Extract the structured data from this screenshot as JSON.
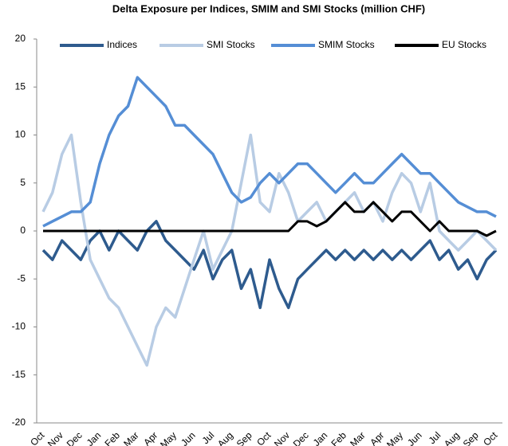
{
  "chart_data": {
    "type": "line",
    "title": "Delta Exposure per Indices, SMIM and SMI Stocks (million CHF)",
    "categories": [
      "Oct",
      null,
      "Nov",
      null,
      "Dec",
      null,
      "Jan",
      null,
      "Feb",
      null,
      "Mar",
      null,
      "Apr",
      null,
      "May",
      null,
      "Jun",
      null,
      "Jul",
      null,
      "Aug",
      null,
      "Sep",
      null,
      "Oct",
      null,
      "Nov",
      null,
      "Dec",
      null,
      "Jan",
      null,
      "Feb",
      null,
      "Mar",
      null,
      "Apr",
      null,
      "May",
      null,
      "Jun",
      null,
      "Jul",
      null,
      "Aug",
      null,
      "Sep",
      null,
      "Oct"
    ],
    "series": [
      {
        "name": "Indices",
        "color": "#2e5b8e",
        "values": [
          -2,
          -3,
          -1,
          -2,
          -3,
          -1,
          0,
          -2,
          0,
          -1,
          -2,
          0,
          1,
          -1,
          -2,
          -3,
          -4,
          -2,
          -5,
          -3,
          -2,
          -6,
          -4,
          -8,
          -3,
          -6,
          -8,
          -5,
          -4,
          -3,
          -2,
          -3,
          -2,
          -3,
          -2,
          -3,
          -2,
          -3,
          -2,
          -3,
          -2,
          -1,
          -3,
          -2,
          -4,
          -3,
          -5,
          -3,
          -2
        ]
      },
      {
        "name": "SMI Stocks",
        "color": "#b8cce4",
        "values": [
          2,
          4,
          8,
          10,
          3,
          -3,
          -5,
          -7,
          -8,
          -10,
          -12,
          -14,
          -10,
          -8,
          -9,
          -6,
          -3,
          0,
          -4,
          -2,
          0,
          5,
          10,
          3,
          2,
          6,
          4,
          1,
          2,
          3,
          1,
          2,
          3,
          4,
          2,
          3,
          1,
          4,
          6,
          5,
          2,
          5,
          0,
          -1,
          -2,
          -1,
          0,
          -1,
          -2
        ]
      },
      {
        "name": "SMIM Stocks",
        "color": "#558ed5",
        "values": [
          0.5,
          1,
          1.5,
          2,
          2,
          3,
          7,
          10,
          12,
          13,
          16,
          15,
          14,
          13,
          11,
          11,
          10,
          9,
          8,
          6,
          4,
          3,
          3.5,
          5,
          6,
          5,
          6,
          7,
          7,
          6,
          5,
          4,
          5,
          6,
          5,
          5,
          6,
          7,
          8,
          7,
          6,
          6,
          5,
          4,
          3,
          2.5,
          2,
          2,
          1.5
        ]
      },
      {
        "name": "EU Stocks",
        "color": "#000000",
        "values": [
          0,
          0,
          0,
          0,
          0,
          0,
          0,
          0,
          0,
          0,
          0,
          0,
          0,
          0,
          0,
          0,
          0,
          0,
          0,
          0,
          0,
          0,
          0,
          0,
          0,
          0,
          0,
          1,
          1,
          0.5,
          1,
          2,
          3,
          2,
          2,
          3,
          2,
          1,
          2,
          2,
          1,
          0,
          1,
          0,
          0,
          0,
          0,
          -0.5,
          0
        ]
      }
    ],
    "ylim": [
      -20,
      20
    ],
    "yticks": [
      -20,
      -15,
      -10,
      -5,
      0,
      5,
      10,
      15,
      20
    ],
    "legend": "top"
  }
}
